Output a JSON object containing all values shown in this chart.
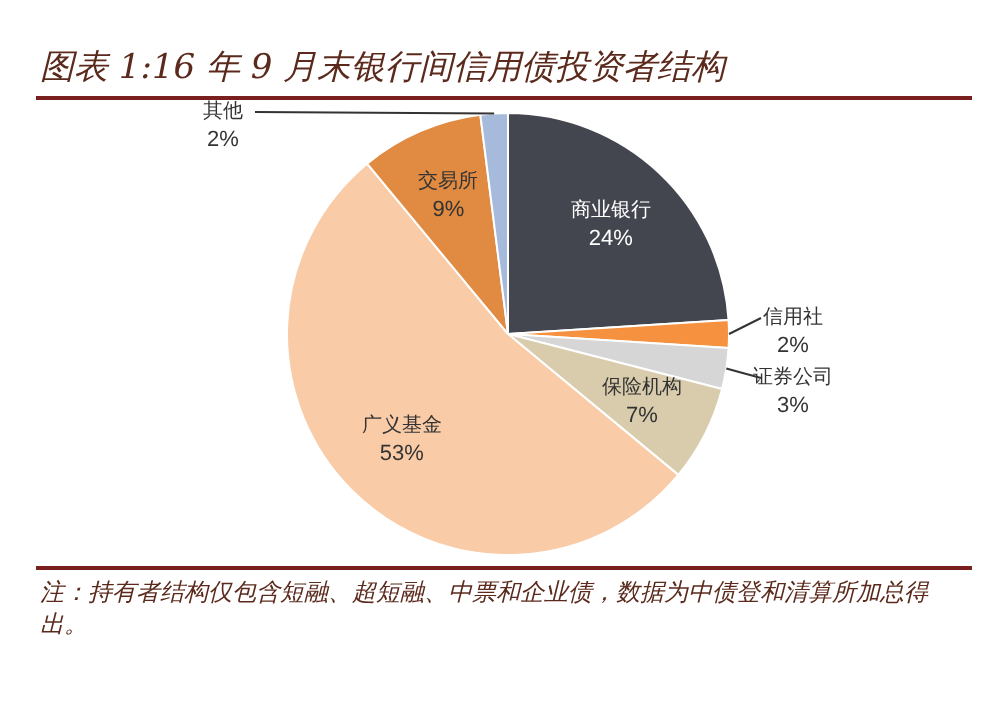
{
  "chart_data": {
    "type": "pie",
    "title": "图表 1:16 年 9 月末银行间信用债投资者结构",
    "categories": [
      "商业银行",
      "信用社",
      "证券公司",
      "保险机构",
      "广义基金",
      "交易所",
      "其他"
    ],
    "values": [
      24,
      2,
      3,
      7,
      53,
      9,
      2
    ],
    "value_labels": [
      "24%",
      "2%",
      "3%",
      "7%",
      "53%",
      "9%",
      "2%"
    ],
    "colors": [
      "#43464e",
      "#f5913f",
      "#d6d6d6",
      "#d9ccad",
      "#f9cba7",
      "#e08a42",
      "#a6bbdb"
    ],
    "annotations": [
      "注：持有者结构仅包含短融、超短融、中票和企业债，数据为中债登和清算所加总得出。"
    ]
  }
}
